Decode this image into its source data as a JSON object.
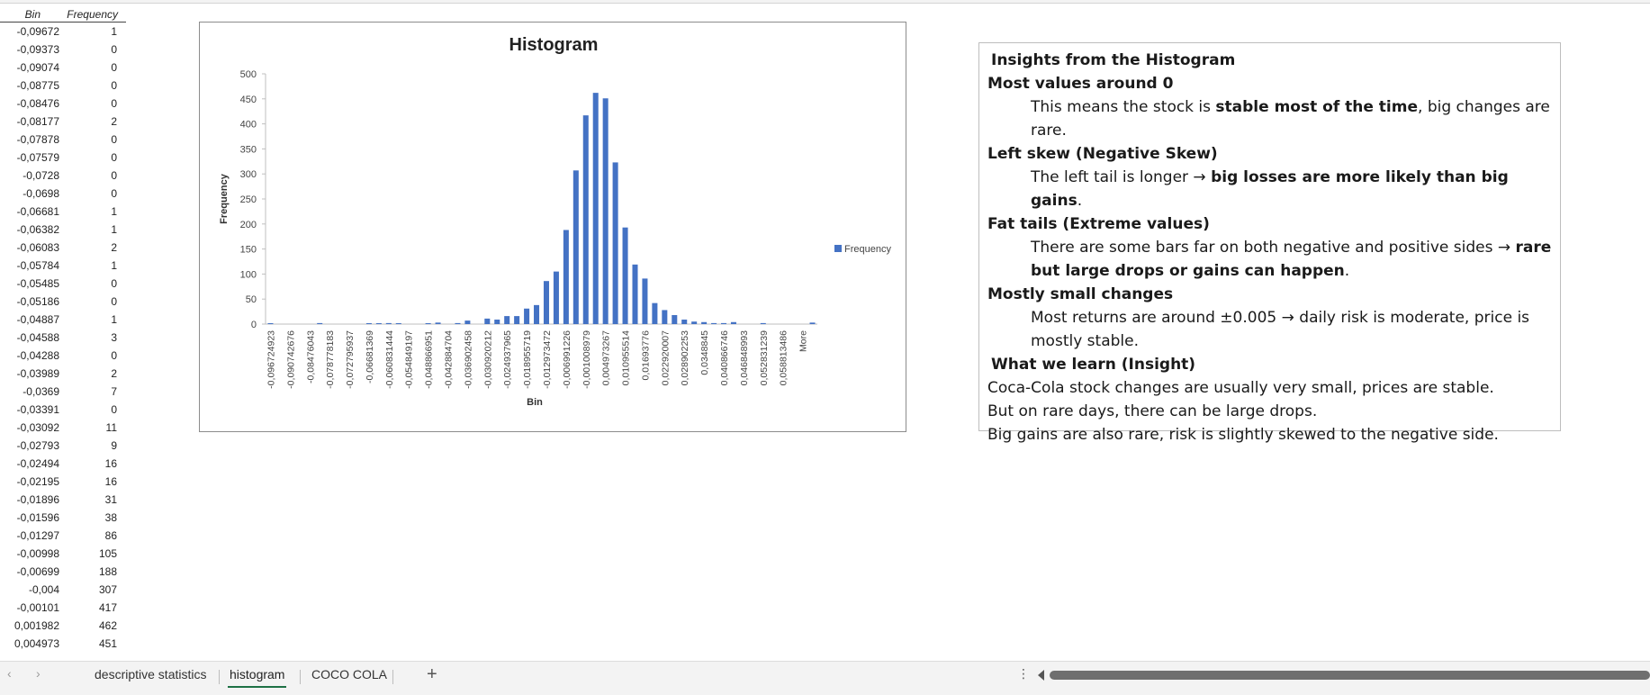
{
  "table": {
    "headers": {
      "bin": "Bin",
      "freq": "Frequency"
    },
    "rows": [
      [
        "-0,09672",
        "1"
      ],
      [
        "-0,09373",
        "0"
      ],
      [
        "-0,09074",
        "0"
      ],
      [
        "-0,08775",
        "0"
      ],
      [
        "-0,08476",
        "0"
      ],
      [
        "-0,08177",
        "2"
      ],
      [
        "-0,07878",
        "0"
      ],
      [
        "-0,07579",
        "0"
      ],
      [
        "-0,0728",
        "0"
      ],
      [
        "-0,0698",
        "0"
      ],
      [
        "-0,06681",
        "1"
      ],
      [
        "-0,06382",
        "1"
      ],
      [
        "-0,06083",
        "2"
      ],
      [
        "-0,05784",
        "1"
      ],
      [
        "-0,05485",
        "0"
      ],
      [
        "-0,05186",
        "0"
      ],
      [
        "-0,04887",
        "1"
      ],
      [
        "-0,04588",
        "3"
      ],
      [
        "-0,04288",
        "0"
      ],
      [
        "-0,03989",
        "2"
      ],
      [
        "-0,0369",
        "7"
      ],
      [
        "-0,03391",
        "0"
      ],
      [
        "-0,03092",
        "11"
      ],
      [
        "-0,02793",
        "9"
      ],
      [
        "-0,02494",
        "16"
      ],
      [
        "-0,02195",
        "16"
      ],
      [
        "-0,01896",
        "31"
      ],
      [
        "-0,01596",
        "38"
      ],
      [
        "-0,01297",
        "86"
      ],
      [
        "-0,00998",
        "105"
      ],
      [
        "-0,00699",
        "188"
      ],
      [
        "-0,004",
        "307"
      ],
      [
        "-0,00101",
        "417"
      ],
      [
        "0,001982",
        "462"
      ],
      [
        "0,004973",
        "451"
      ]
    ]
  },
  "chart_data": {
    "type": "bar",
    "title": "Histogram",
    "xlabel": "Bin",
    "ylabel": "Frequency",
    "ylim": [
      0,
      500
    ],
    "yticks": [
      "0",
      "50",
      "100",
      "150",
      "200",
      "250",
      "300",
      "350",
      "400",
      "450",
      "500"
    ],
    "legend": "right",
    "x_tick_labels": [
      "-0,096724923",
      "-0,090742676",
      "-0,08476043",
      "-0,078778183",
      "-0,072795937",
      "-0,06681369",
      "-0,060831444",
      "-0,054849197",
      "-0,048866951",
      "-0,042884704",
      "-0,036902458",
      "-0,030920212",
      "-0,024937965",
      "-0,018955719",
      "-0,012973472",
      "-0,006991226",
      "-0,001008979",
      "0,004973267",
      "0,010955514",
      "0,01693776",
      "0,022920007",
      "0,028902253",
      "0,0348845",
      "0,040866746",
      "0,046848993",
      "0,052831239",
      "0,058813486",
      "More"
    ],
    "series": [
      {
        "name": "Frequency",
        "color": "#4472c4",
        "values": [
          1,
          0,
          0,
          0,
          0,
          2,
          0,
          0,
          0,
          0,
          1,
          1,
          2,
          1,
          0,
          0,
          1,
          3,
          0,
          2,
          7,
          0,
          11,
          9,
          16,
          16,
          31,
          38,
          86,
          105,
          188,
          307,
          417,
          462,
          451,
          323,
          193,
          119,
          91,
          42,
          28,
          18,
          9,
          5,
          4,
          2,
          2,
          4,
          0,
          0,
          2,
          0,
          0,
          0,
          0,
          3
        ]
      }
    ]
  },
  "insights": {
    "title": "Insights from the Histogram",
    "h1": "Most values around 0",
    "p1a": "This means the stock is ",
    "p1b": "stable most of the time",
    "p1c": ", big changes are rare.",
    "h2": "Left skew (Negative Skew)",
    "p2a": "The left tail is longer → ",
    "p2b": "big losses are more likely than big gains",
    "p2c": ".",
    "h3": "Fat tails (Extreme values)",
    "p3a": "There are some bars far on both negative and positive sides → ",
    "p3b": "rare but large drops or gains can happen",
    "p3c": ".",
    "h4": "Mostly small changes",
    "p4": "Most returns are around ±0.005 → daily risk is moderate, price is mostly stable.",
    "h5": "What we learn (Insight)",
    "l1": "Coca-Cola stock changes are usually very small, prices are stable.",
    "l2": "But on rare days, there can be large drops.",
    "l3": "Big gains are also rare, risk is slightly skewed to the negative side."
  },
  "tabs": {
    "items": [
      "descriptive statistics",
      "histogram",
      "COCO COLA"
    ],
    "active": "histogram",
    "add": "+",
    "prev": "‹",
    "next": "›",
    "more": "⋮"
  }
}
